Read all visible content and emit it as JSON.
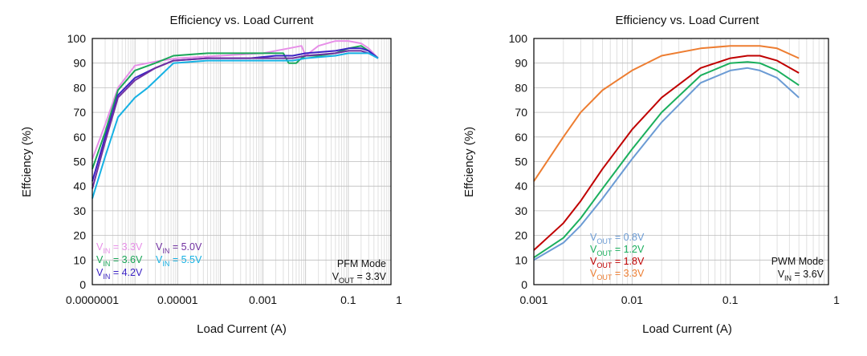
{
  "chart_data": [
    {
      "type": "line",
      "title": "Efficiency vs. Load Current",
      "xlabel": "Load Current (A)",
      "ylabel": "Effciency (%)",
      "xscale": "log",
      "xlim": [
        1e-07,
        1
      ],
      "ylim": [
        0,
        100
      ],
      "x_tick_labels": [
        "0.0000001",
        "0.00001",
        "0.001",
        "0.1",
        "1"
      ],
      "y_tick_labels": [
        "0",
        "10",
        "20",
        "30",
        "40",
        "50",
        "60",
        "70",
        "80",
        "90",
        "100"
      ],
      "grid": "on",
      "legend_position": "bottom-left",
      "annotation": {
        "mode": "PFM Mode",
        "cond_main": "V",
        "cond_sub": "OUT",
        "cond_val": " = 3.3V"
      },
      "series": [
        {
          "name": "VIN = 3.3V",
          "label_main": "V",
          "label_sub": "IN",
          "label_val": " = 3.3V",
          "color": "#e78fe8",
          "x": [
            1e-07,
            2e-07,
            4e-07,
            1e-06,
            4e-06,
            1e-05,
            0.0001,
            0.001,
            0.002,
            0.004,
            0.008,
            0.01,
            0.02,
            0.05,
            0.08,
            0.1,
            0.2,
            0.3,
            0.5
          ],
          "y": [
            51,
            65,
            80,
            89,
            91,
            92,
            93,
            94,
            95,
            96,
            97,
            93,
            97,
            99,
            99,
            99,
            98,
            96,
            92
          ]
        },
        {
          "name": "VIN = 3.6V",
          "label_main": "V",
          "label_sub": "IN",
          "label_val": " = 3.6V",
          "color": "#1aa658",
          "x": [
            1e-07,
            2e-07,
            4e-07,
            1e-06,
            3e-06,
            8e-06,
            5e-05,
            0.0005,
            0.002,
            0.003,
            0.004,
            0.006,
            0.008,
            0.01,
            0.02,
            0.05,
            0.1,
            0.2,
            0.3,
            0.5
          ],
          "y": [
            47,
            62,
            79,
            87,
            90,
            93,
            94,
            94,
            94,
            94,
            90,
            90,
            92,
            93,
            93,
            94,
            96,
            97,
            95,
            92
          ]
        },
        {
          "name": "VIN = 4.2V",
          "label_main": "V",
          "label_sub": "IN",
          "label_val": " = 4.2V",
          "color": "#3b23c4",
          "x": [
            1e-07,
            2e-07,
            4e-07,
            1e-06,
            3e-06,
            8e-06,
            5e-05,
            0.0005,
            0.002,
            0.005,
            0.01,
            0.05,
            0.1,
            0.2,
            0.3,
            0.5
          ],
          "y": [
            42,
            60,
            77,
            84,
            88,
            91,
            92,
            92,
            93,
            93,
            94,
            95,
            96,
            96,
            95,
            92
          ]
        },
        {
          "name": "VIN = 5.0V",
          "label_main": "V",
          "label_sub": "IN",
          "label_val": " = 5.0V",
          "color": "#7030a0",
          "x": [
            1e-07,
            2e-07,
            4e-07,
            1e-06,
            3e-06,
            8e-06,
            5e-05,
            0.0005,
            0.002,
            0.005,
            0.01,
            0.05,
            0.1,
            0.2,
            0.3,
            0.5
          ],
          "y": [
            39,
            58,
            76,
            83,
            88,
            91,
            92,
            92,
            92,
            92,
            93,
            94,
            95,
            95,
            94,
            92
          ]
        },
        {
          "name": "VIN = 5.5V",
          "label_main": "V",
          "label_sub": "IN",
          "label_val": " = 5.5V",
          "color": "#16b1e3",
          "x": [
            1e-07,
            2e-07,
            4e-07,
            1e-06,
            2e-06,
            4e-06,
            8e-06,
            5e-05,
            0.0005,
            0.002,
            0.005,
            0.01,
            0.05,
            0.1,
            0.2,
            0.3,
            0.5
          ],
          "y": [
            35,
            52,
            68,
            76,
            80,
            85,
            90,
            91,
            91,
            91,
            91,
            92,
            93,
            94,
            94,
            94,
            92
          ]
        }
      ]
    },
    {
      "type": "line",
      "title": "Efficiency vs. Load Current",
      "xlabel": "Load Current (A)",
      "ylabel": "Effciency (%)",
      "xscale": "log",
      "xlim": [
        0.001,
        1
      ],
      "ylim": [
        0,
        100
      ],
      "x_tick_labels": [
        "0.001",
        "0.01",
        "0.1",
        "1"
      ],
      "y_tick_labels": [
        "0",
        "10",
        "20",
        "30",
        "40",
        "50",
        "60",
        "70",
        "80",
        "90",
        "100"
      ],
      "grid": "on",
      "legend_position": "bottom-center",
      "annotation": {
        "mode": "PWM Mode",
        "cond_main": "V",
        "cond_sub": "IN",
        "cond_val": " = 3.6V"
      },
      "series": [
        {
          "name": "VOUT = 0.8V",
          "label_main": "V",
          "label_sub": "OUT",
          "label_val": " = 0.8V",
          "color": "#6b9bd4",
          "x": [
            0.001,
            0.002,
            0.003,
            0.005,
            0.01,
            0.02,
            0.05,
            0.1,
            0.15,
            0.2,
            0.3,
            0.5
          ],
          "y": [
            10,
            17,
            24,
            35,
            51,
            66,
            82,
            87,
            88,
            87,
            84,
            76
          ]
        },
        {
          "name": "VOUT = 1.2V",
          "label_main": "V",
          "label_sub": "OUT",
          "label_val": " = 1.2V",
          "color": "#1aaf5d",
          "x": [
            0.001,
            0.002,
            0.003,
            0.005,
            0.01,
            0.02,
            0.05,
            0.1,
            0.15,
            0.2,
            0.3,
            0.5
          ],
          "y": [
            11,
            19,
            27,
            39,
            55,
            70,
            85,
            90,
            90.5,
            90,
            87,
            81
          ]
        },
        {
          "name": "VOUT = 1.8V",
          "label_main": "V",
          "label_sub": "OUT",
          "label_val": " = 1.8V",
          "color": "#c00000",
          "x": [
            0.001,
            0.002,
            0.003,
            0.005,
            0.01,
            0.02,
            0.05,
            0.1,
            0.15,
            0.2,
            0.3,
            0.5
          ],
          "y": [
            14,
            25,
            34,
            47,
            63,
            76,
            88,
            92,
            93,
            93,
            91,
            86
          ]
        },
        {
          "name": "VOUT = 3.3V",
          "label_main": "V",
          "label_sub": "OUT",
          "label_val": " = 3.3V",
          "color": "#ed7d31",
          "x": [
            0.001,
            0.002,
            0.003,
            0.005,
            0.01,
            0.02,
            0.05,
            0.1,
            0.15,
            0.2,
            0.3,
            0.5
          ],
          "y": [
            42,
            60,
            70,
            79,
            87,
            93,
            96,
            97,
            97,
            97,
            96,
            92
          ]
        }
      ]
    }
  ]
}
